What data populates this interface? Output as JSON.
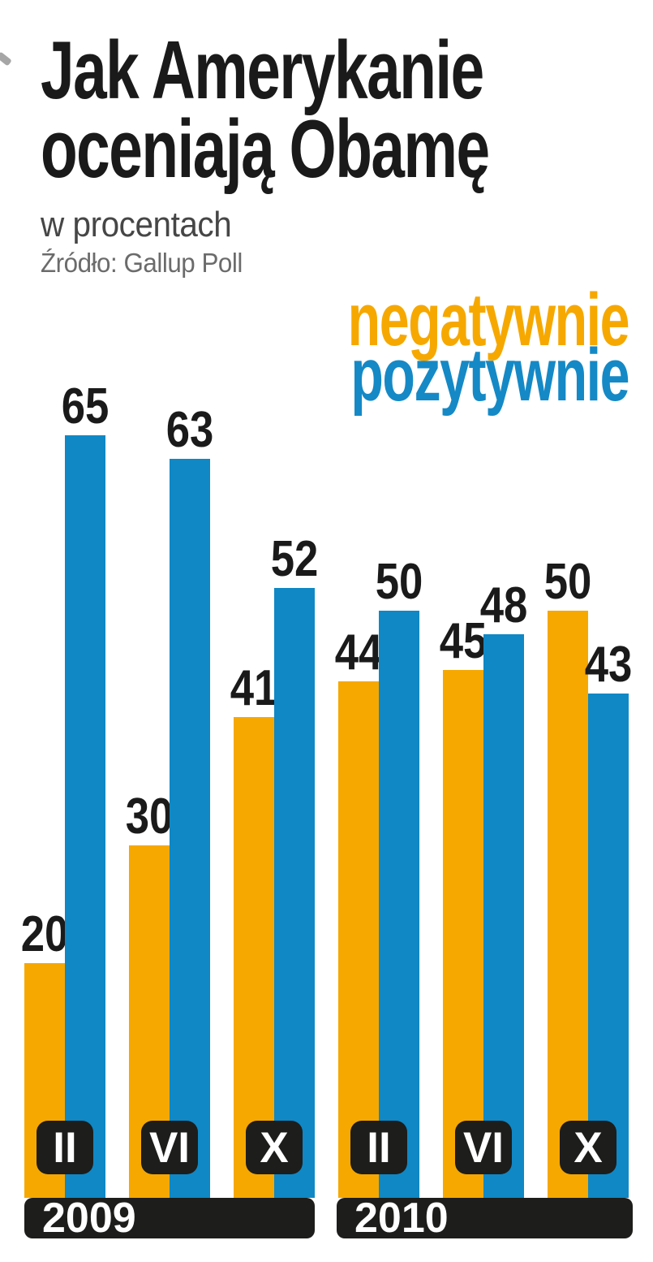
{
  "header": {
    "title_line1": "Jak Amerykanie",
    "title_line2": "oceniają Obamę",
    "subtitle": "w procentach",
    "source": "Źródło: Gallup Poll"
  },
  "legend": {
    "negative_label": "negatywnie",
    "positive_label": "pozytywnie",
    "negative_color": "#F6A800",
    "positive_color": "#1589C6"
  },
  "axis": {
    "label_bg": "#1d1d1b",
    "label_color": "#ffffff",
    "month_labels": [
      "II",
      "VI",
      "X",
      "II",
      "VI",
      "X"
    ],
    "year_labels": [
      "2009",
      "2010"
    ]
  },
  "chart_data": {
    "type": "bar",
    "title": "Jak Amerykanie oceniają Obamę",
    "ylabel": "w procentach",
    "source": "Źródło: Gallup Poll",
    "categories": [
      "II 2009",
      "VI 2009",
      "X 2009",
      "II 2010",
      "VI 2010",
      "X 2010"
    ],
    "series": [
      {
        "name": "negatywnie",
        "color": "#F6A800",
        "values": [
          20,
          30,
          41,
          44,
          45,
          50
        ]
      },
      {
        "name": "pozytywnie",
        "color": "#0F88C5",
        "values": [
          65,
          63,
          52,
          50,
          48,
          43
        ]
      }
    ],
    "groups": [
      {
        "year": "2009",
        "months": [
          "II",
          "VI",
          "X"
        ]
      },
      {
        "year": "2010",
        "months": [
          "II",
          "VI",
          "X"
        ]
      }
    ],
    "ylim": [
      0,
      65
    ],
    "grid": false,
    "value_labels": true,
    "legend_position": "top-right"
  }
}
